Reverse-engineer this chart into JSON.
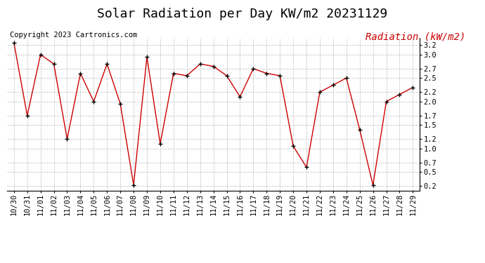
{
  "title": "Solar Radiation per Day KW/m2 20231129",
  "copyright_text": "Copyright 2023 Cartronics.com",
  "legend_label": "Radiation (kW/m2)",
  "dates": [
    "10/30",
    "10/31",
    "11/01",
    "11/02",
    "11/03",
    "11/04",
    "11/05",
    "11/06",
    "11/07",
    "11/08",
    "11/09",
    "11/10",
    "11/11",
    "11/12",
    "11/13",
    "11/14",
    "11/15",
    "11/16",
    "11/17",
    "11/18",
    "11/19",
    "11/20",
    "11/21",
    "11/22",
    "11/23",
    "11/24",
    "11/25",
    "11/26",
    "11/27",
    "11/28",
    "11/29"
  ],
  "values": [
    3.25,
    1.7,
    3.0,
    2.8,
    1.2,
    2.6,
    2.0,
    2.8,
    1.95,
    0.22,
    2.95,
    1.1,
    2.6,
    2.55,
    2.8,
    2.75,
    2.55,
    2.1,
    2.7,
    2.6,
    2.55,
    1.05,
    0.6,
    2.2,
    2.35,
    2.5,
    1.4,
    0.22,
    2.0,
    2.15,
    2.3
  ],
  "line_color": "#cc0000",
  "marker_color": "#000000",
  "legend_color": "#cc0000",
  "background_color": "#ffffff",
  "grid_color": "#bbbbbb",
  "ylim_min": 0.1,
  "ylim_max": 3.35,
  "yticks": [
    0.2,
    0.5,
    0.7,
    1.0,
    1.2,
    1.5,
    1.7,
    2.0,
    2.2,
    2.5,
    2.7,
    3.0,
    3.2
  ],
  "title_fontsize": 13,
  "copyright_fontsize": 7.5,
  "legend_fontsize": 10,
  "tick_fontsize": 7.5
}
